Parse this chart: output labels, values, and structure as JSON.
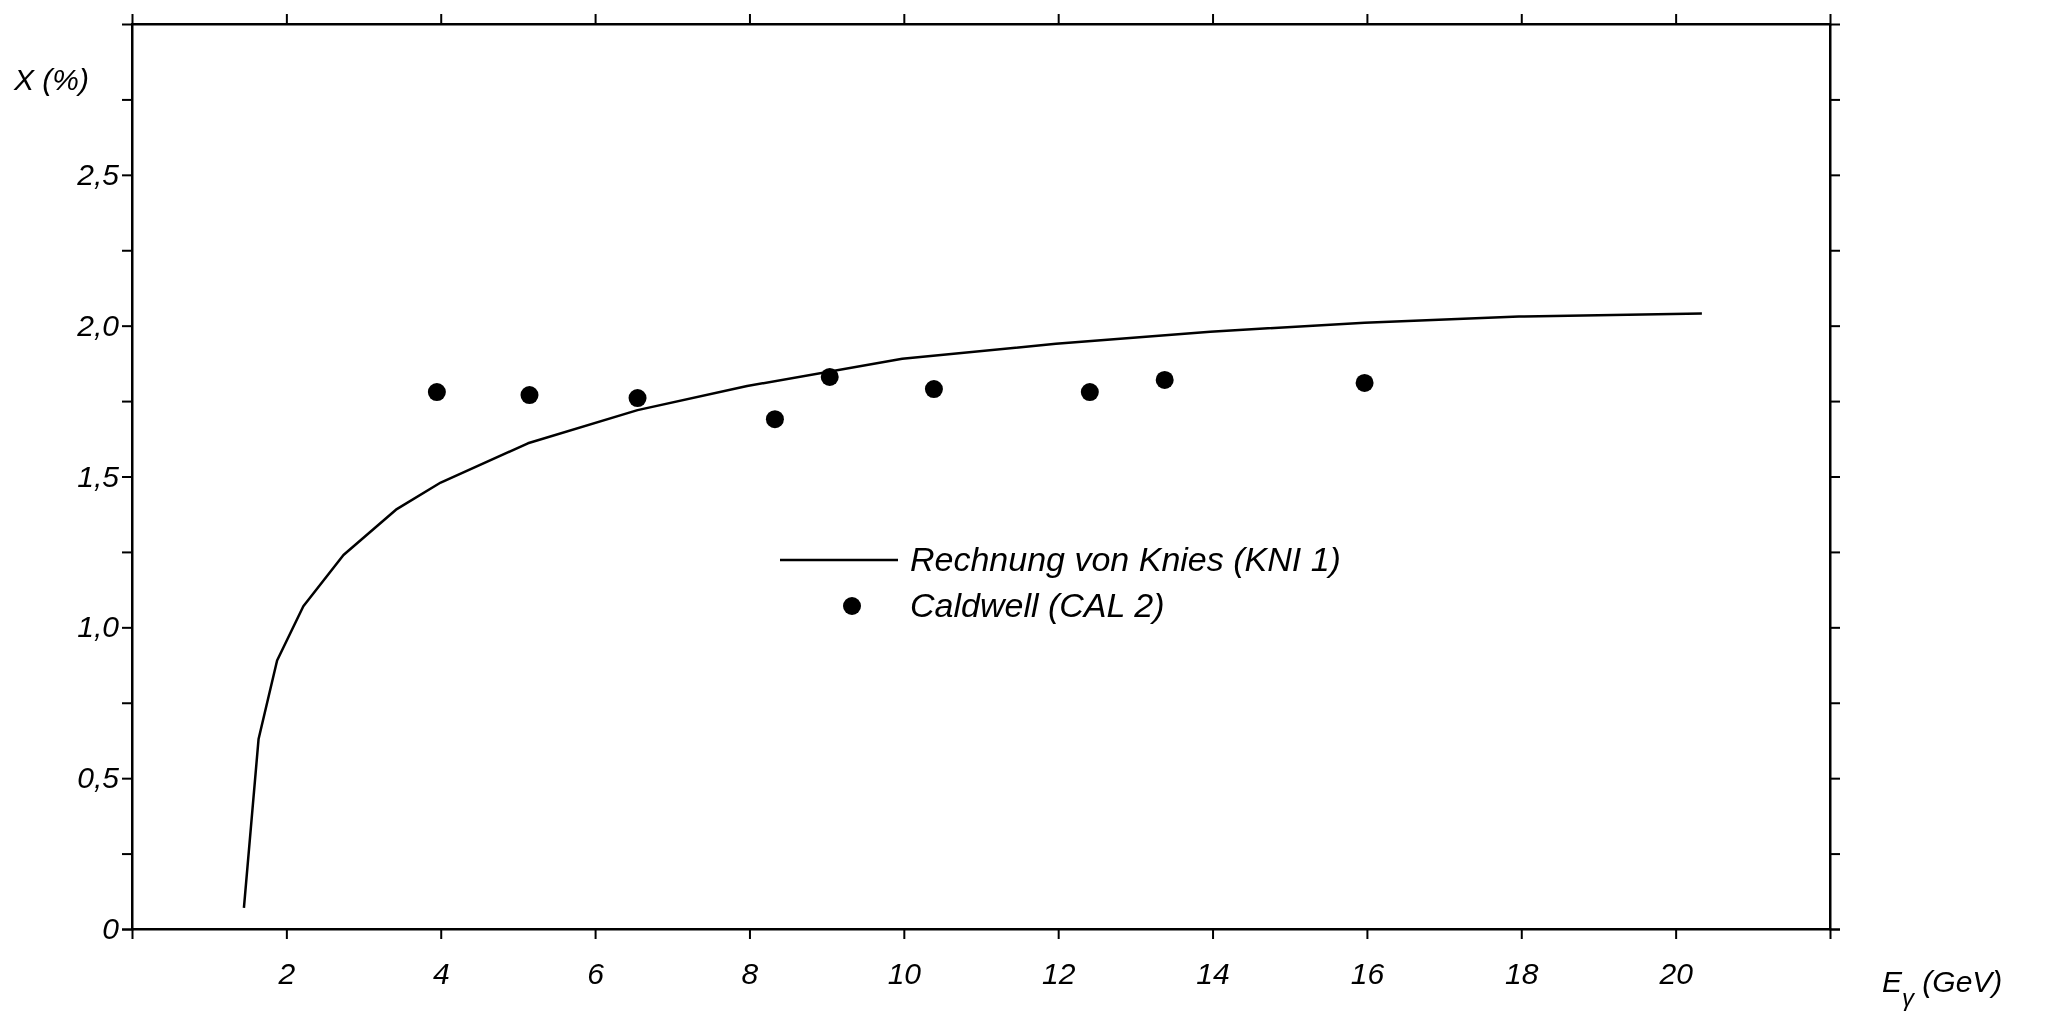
{
  "chart_data": {
    "type": "scatter",
    "xlabel": "E$_{γ}$ (GeV)",
    "ylabel": "X (%)",
    "xlim": [
      0,
      22
    ],
    "ylim": [
      0,
      3
    ],
    "xticks": [
      2,
      4,
      6,
      8,
      10,
      12,
      14,
      16,
      18,
      20
    ],
    "yticks": [
      {
        "value": 0,
        "label": "0"
      },
      {
        "value": 0.25,
        "label": null
      },
      {
        "value": 0.5,
        "label": "0,5"
      },
      {
        "value": 0.75,
        "label": null
      },
      {
        "value": 1,
        "label": "1,0"
      },
      {
        "value": 1.25,
        "label": null
      },
      {
        "value": 1.5,
        "label": "1,5"
      },
      {
        "value": 1.75,
        "label": null
      },
      {
        "value": 2,
        "label": "2,0"
      },
      {
        "value": 2.25,
        "label": null
      },
      {
        "value": 2.5,
        "label": "2,5"
      },
      {
        "value": 2.75,
        "label": null
      }
    ],
    "legend": "center",
    "grid": false,
    "series": [
      {
        "name": "Rechnung von Knies (KNI 1)",
        "type": "line",
        "color": "#000000",
        "marker": "none",
        "line_style": "solid",
        "x": [
          1.45,
          1.64,
          1.88,
          2.22,
          2.74,
          3.42,
          4.0,
          5.13,
          6.55,
          7.97,
          9.98,
          11.97,
          13.97,
          15.97,
          17.97,
          20.34
        ],
        "values": [
          0.07,
          0.63,
          0.89,
          1.07,
          1.24,
          1.39,
          1.48,
          1.61,
          1.72,
          1.8,
          1.89,
          1.94,
          1.98,
          2.01,
          2.03,
          2.04
        ]
      },
      {
        "name": "Caldwell (CAL 2)",
        "color": "#000000",
        "marker": "circle",
        "x": [
          3.95,
          5.15,
          6.55,
          8.33,
          9.04,
          10.39,
          12.41,
          13.38,
          15.97
        ],
        "values": [
          1.78,
          1.77,
          1.76,
          1.69,
          1.83,
          1.79,
          1.78,
          1.82,
          1.81
        ]
      }
    ]
  }
}
